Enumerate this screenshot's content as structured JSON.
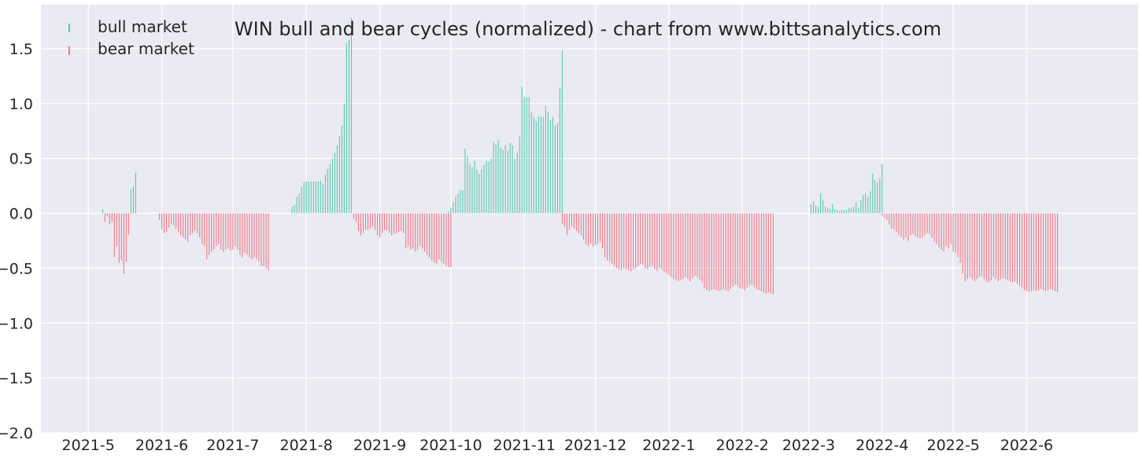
{
  "chart_data": {
    "type": "bar",
    "title": "WIN bull and bear cycles (normalized)  - chart from www.bittsanalytics.com",
    "xlabel": "",
    "ylabel": "",
    "ylim": [
      -2.0,
      1.9
    ],
    "yticks": [
      -2.0,
      -1.5,
      -1.0,
      -0.5,
      0.0,
      0.5,
      1.0,
      1.5
    ],
    "ytick_labels": [
      "−2.0",
      "−1.5",
      "−1.0",
      "−0.5",
      "0.0",
      "0.5",
      "1.0",
      "1.5"
    ],
    "x_axis": {
      "type": "date",
      "start": "2021-05-07",
      "end": "2022-06-29",
      "tick_dates": [
        "2021-05-01",
        "2021-06-01",
        "2021-07-01",
        "2021-08-01",
        "2021-09-01",
        "2021-10-01",
        "2021-11-01",
        "2021-12-01",
        "2022-01-01",
        "2022-02-01",
        "2022-03-01",
        "2022-04-01",
        "2022-05-01",
        "2022-06-01"
      ],
      "tick_labels": [
        "2021-5",
        "2021-6",
        "2021-7",
        "2021-8",
        "2021-9",
        "2021-10",
        "2021-11",
        "2021-12",
        "2022-1",
        "2022-2",
        "2022-3",
        "2022-4",
        "2022-5",
        "2022-6"
      ]
    },
    "grid": true,
    "legend": {
      "position": "top-left",
      "entries": [
        "bull market",
        "bear market"
      ]
    },
    "colors": {
      "bull": "#5bc8b2",
      "bear": "#f07a87",
      "background": "#eaeaf2",
      "grid": "#ffffff"
    },
    "series": [
      {
        "name": "bull market",
        "segments": [
          {
            "start": "2021-05-07",
            "values": [
              0.04
            ]
          },
          {
            "start": "2021-05-19",
            "values": [
              0.22,
              0.25,
              0.37
            ]
          },
          {
            "start": "2021-07-26",
            "values": [
              0.06,
              0.08,
              0.15,
              0.18,
              0.24,
              0.28,
              0.29,
              0.29,
              0.29,
              0.29,
              0.29,
              0.29,
              0.3,
              0.27,
              0.35,
              0.4,
              0.45,
              0.5,
              0.55,
              0.62,
              0.7,
              0.8,
              1.0,
              1.55,
              1.58,
              1.78
            ]
          },
          {
            "start": "2021-09-30",
            "values": [
              0.02,
              0.05,
              0.1,
              0.15,
              0.18,
              0.21,
              0.21,
              0.59,
              0.52,
              0.45,
              0.42,
              0.48,
              0.4,
              0.36,
              0.4,
              0.44,
              0.48,
              0.47,
              0.5,
              0.65,
              0.63,
              0.67,
              0.6,
              0.58,
              0.62,
              0.57,
              0.64,
              0.62,
              0.5,
              0.55,
              0.7,
              1.15,
              1.06,
              1.06,
              1.06,
              0.92,
              0.88,
              0.84,
              0.88,
              0.88,
              0.88,
              0.98,
              0.92,
              0.85,
              0.88,
              0.8,
              0.82,
              1.14,
              1.48
            ]
          },
          {
            "start": "2022-03-02",
            "values": [
              0.08,
              0.11,
              0.07,
              0.06,
              0.18,
              0.12,
              0.06,
              0.05,
              0.04,
              0.08,
              0.04,
              0.03,
              0.02,
              0.03,
              0.03,
              0.03,
              0.05,
              0.05,
              0.06,
              0.1,
              0.05,
              0.12,
              0.17,
              0.18,
              0.15,
              0.2,
              0.36,
              0.3,
              0.28,
              0.32,
              0.45
            ]
          }
        ]
      },
      {
        "name": "bear market",
        "segments": [
          {
            "start": "2021-05-08",
            "values": [
              -0.08,
              -0.03,
              -0.1,
              -0.08,
              -0.4,
              -0.3,
              -0.45,
              -0.43,
              -0.55,
              -0.44,
              -0.2
            ]
          },
          {
            "start": "2021-05-31",
            "values": [
              -0.06,
              -0.15,
              -0.18,
              -0.17,
              -0.13,
              -0.1,
              -0.11,
              -0.14,
              -0.17,
              -0.2,
              -0.22,
              -0.24,
              -0.26,
              -0.2,
              -0.18,
              -0.16,
              -0.18,
              -0.22,
              -0.28,
              -0.3,
              -0.42,
              -0.38,
              -0.35,
              -0.33,
              -0.3,
              -0.28,
              -0.33,
              -0.35,
              -0.33,
              -0.32,
              -0.34,
              -0.33,
              -0.3,
              -0.33,
              -0.38,
              -0.4,
              -0.36,
              -0.38,
              -0.4,
              -0.42,
              -0.4,
              -0.42,
              -0.44,
              -0.48,
              -0.48,
              -0.5,
              -0.52
            ]
          },
          {
            "start": "2021-08-21",
            "values": [
              -0.05,
              -0.08,
              -0.16,
              -0.2,
              -0.18,
              -0.15,
              -0.15,
              -0.14,
              -0.12,
              -0.15,
              -0.2,
              -0.22,
              -0.18,
              -0.15,
              -0.16,
              -0.18,
              -0.2,
              -0.19,
              -0.18,
              -0.17,
              -0.16,
              -0.18,
              -0.32,
              -0.3,
              -0.33,
              -0.32,
              -0.35,
              -0.33,
              -0.3,
              -0.32,
              -0.35,
              -0.38,
              -0.4,
              -0.43,
              -0.45,
              -0.46,
              -0.42,
              -0.44,
              -0.46,
              -0.48,
              -0.49,
              -0.49
            ]
          },
          {
            "start": "2021-11-17",
            "values": [
              -0.1,
              -0.12,
              -0.2,
              -0.15,
              -0.12,
              -0.14,
              -0.16,
              -0.18,
              -0.2,
              -0.24,
              -0.28,
              -0.3,
              -0.28,
              -0.3,
              -0.29,
              -0.28,
              -0.26,
              -0.32,
              -0.4,
              -0.43,
              -0.44,
              -0.46,
              -0.48,
              -0.5,
              -0.51,
              -0.52,
              -0.5,
              -0.51,
              -0.52,
              -0.53,
              -0.51,
              -0.5,
              -0.48,
              -0.46,
              -0.47,
              -0.5,
              -0.51,
              -0.49,
              -0.48,
              -0.51,
              -0.52,
              -0.5,
              -0.51,
              -0.53,
              -0.55,
              -0.56,
              -0.58,
              -0.6,
              -0.61,
              -0.62,
              -0.61,
              -0.6,
              -0.58,
              -0.6,
              -0.62,
              -0.59,
              -0.57,
              -0.58,
              -0.61,
              -0.63,
              -0.68,
              -0.7,
              -0.71,
              -0.7,
              -0.69,
              -0.7,
              -0.71,
              -0.7,
              -0.69,
              -0.7,
              -0.71,
              -0.69,
              -0.67,
              -0.65,
              -0.66,
              -0.68,
              -0.69,
              -0.7,
              -0.68,
              -0.66,
              -0.65,
              -0.67,
              -0.69,
              -0.7,
              -0.71,
              -0.72,
              -0.73,
              -0.72,
              -0.73,
              -0.74
            ]
          },
          {
            "start": "2022-04-01",
            "values": [
              -0.02,
              -0.04,
              -0.06,
              -0.1,
              -0.14,
              -0.15,
              -0.17,
              -0.2,
              -0.22,
              -0.24,
              -0.22,
              -0.25,
              -0.2,
              -0.19,
              -0.21,
              -0.22,
              -0.23,
              -0.22,
              -0.2,
              -0.18,
              -0.19,
              -0.22,
              -0.26,
              -0.28,
              -0.31,
              -0.33,
              -0.35,
              -0.3,
              -0.32,
              -0.28,
              -0.35,
              -0.36,
              -0.4,
              -0.45,
              -0.55,
              -0.62,
              -0.6,
              -0.58,
              -0.6,
              -0.62,
              -0.6,
              -0.58,
              -0.57,
              -0.6,
              -0.62,
              -0.63,
              -0.61,
              -0.58,
              -0.6,
              -0.62,
              -0.6,
              -0.59,
              -0.6,
              -0.61,
              -0.62,
              -0.63,
              -0.62,
              -0.64,
              -0.66,
              -0.68,
              -0.7,
              -0.71,
              -0.72,
              -0.71,
              -0.7,
              -0.71,
              -0.7,
              -0.69,
              -0.7,
              -0.71,
              -0.7,
              -0.69,
              -0.7,
              -0.71,
              -0.72
            ]
          }
        ]
      }
    ]
  }
}
